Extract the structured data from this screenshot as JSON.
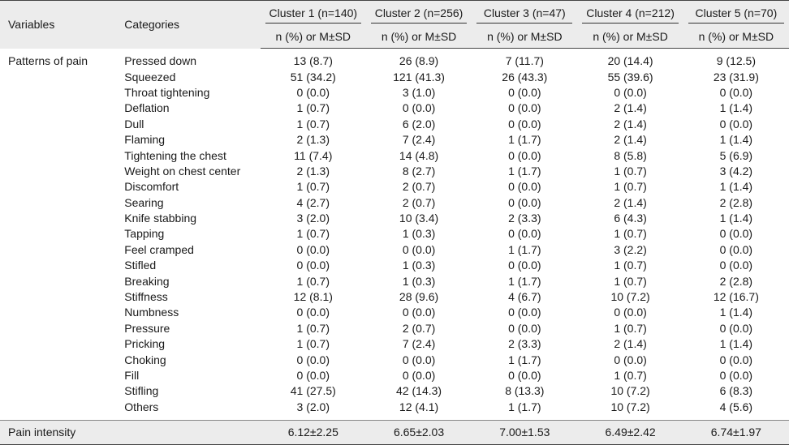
{
  "header": {
    "variables_label": "Variables",
    "categories_label": "Categories",
    "clusters": [
      {
        "label": "Cluster 1 (n=140)",
        "sub": "n (%) or M±SD"
      },
      {
        "label": "Cluster 2 (n=256)",
        "sub": "n (%) or M±SD"
      },
      {
        "label": "Cluster 3 (n=47)",
        "sub": "n (%) or M±SD"
      },
      {
        "label": "Cluster 4 (n=212)",
        "sub": "n (%) or M±SD"
      },
      {
        "label": "Cluster 5 (n=70)",
        "sub": "n (%) or M±SD"
      }
    ]
  },
  "patterns": {
    "variable_label": "Patterns of pain",
    "rows": [
      {
        "category": "Pressed down",
        "values": [
          "13 (8.7)",
          "26 (8.9)",
          "7 (11.7)",
          "20 (14.4)",
          "9 (12.5)"
        ]
      },
      {
        "category": "Squeezed",
        "values": [
          "51 (34.2)",
          "121 (41.3)",
          "26 (43.3)",
          "55 (39.6)",
          "23 (31.9)"
        ]
      },
      {
        "category": "Throat tightening",
        "values": [
          "0 (0.0)",
          "3 (1.0)",
          "0 (0.0)",
          "0 (0.0)",
          "0 (0.0)"
        ]
      },
      {
        "category": "Deflation",
        "values": [
          "1 (0.7)",
          "0 (0.0)",
          "0 (0.0)",
          "2 (1.4)",
          "1 (1.4)"
        ]
      },
      {
        "category": "Dull",
        "values": [
          "1 (0.7)",
          "6 (2.0)",
          "0 (0.0)",
          "2 (1.4)",
          "0 (0.0)"
        ]
      },
      {
        "category": "Flaming",
        "values": [
          "2 (1.3)",
          "7 (2.4)",
          "1 (1.7)",
          "2 (1.4)",
          "1 (1.4)"
        ]
      },
      {
        "category": "Tightening the chest",
        "values": [
          "11 (7.4)",
          "14 (4.8)",
          "0 (0.0)",
          "8 (5.8)",
          "5 (6.9)"
        ]
      },
      {
        "category": "Weight on chest center",
        "values": [
          "2 (1.3)",
          "8 (2.7)",
          "1 (1.7)",
          "1 (0.7)",
          "3 (4.2)"
        ]
      },
      {
        "category": "Discomfort",
        "values": [
          "1 (0.7)",
          "2 (0.7)",
          "0 (0.0)",
          "1 (0.7)",
          "1 (1.4)"
        ]
      },
      {
        "category": "Searing",
        "values": [
          "4 (2.7)",
          "2 (0.7)",
          "0 (0.0)",
          "2 (1.4)",
          "2 (2.8)"
        ]
      },
      {
        "category": "Knife stabbing",
        "values": [
          "3 (2.0)",
          "10 (3.4)",
          "2 (3.3)",
          "6 (4.3)",
          "1 (1.4)"
        ]
      },
      {
        "category": "Tapping",
        "values": [
          "1 (0.7)",
          "1 (0.3)",
          "0 (0.0)",
          "1 (0.7)",
          "0 (0.0)"
        ]
      },
      {
        "category": "Feel cramped",
        "values": [
          "0 (0.0)",
          "0 (0.0)",
          "1 (1.7)",
          "3 (2.2)",
          "0 (0.0)"
        ]
      },
      {
        "category": "Stifled",
        "values": [
          "0 (0.0)",
          "1 (0.3)",
          "0 (0.0)",
          "1 (0.7)",
          "0 (0.0)"
        ]
      },
      {
        "category": "Breaking",
        "values": [
          "1 (0.7)",
          "1 (0.3)",
          "1 (1.7)",
          "1 (0.7)",
          "2 (2.8)"
        ]
      },
      {
        "category": "Stiffness",
        "values": [
          "12 (8.1)",
          "28 (9.6)",
          "4 (6.7)",
          "10 (7.2)",
          "12 (16.7)"
        ]
      },
      {
        "category": "Numbness",
        "values": [
          "0 (0.0)",
          "0 (0.0)",
          "0 (0.0)",
          "0 (0.0)",
          "1 (1.4)"
        ]
      },
      {
        "category": "Pressure",
        "values": [
          "1 (0.7)",
          "2 (0.7)",
          "0 (0.0)",
          "1 (0.7)",
          "0 (0.0)"
        ]
      },
      {
        "category": "Pricking",
        "values": [
          "1 (0.7)",
          "7 (2.4)",
          "2 (3.3)",
          "2 (1.4)",
          "1 (1.4)"
        ]
      },
      {
        "category": "Choking",
        "values": [
          "0 (0.0)",
          "0 (0.0)",
          "1 (1.7)",
          "0 (0.0)",
          "0 (0.0)"
        ]
      },
      {
        "category": "Fill",
        "values": [
          "0 (0.0)",
          "0 (0.0)",
          "0 (0.0)",
          "1 (0.7)",
          "0 (0.0)"
        ]
      },
      {
        "category": "Stifling",
        "values": [
          "41 (27.5)",
          "42 (14.3)",
          "8 (13.3)",
          "10 (7.2)",
          "6 (8.3)"
        ]
      },
      {
        "category": "Others",
        "values": [
          "3 (2.0)",
          "12 (4.1)",
          "1 (1.7)",
          "10 (7.2)",
          "4 (5.6)"
        ]
      }
    ]
  },
  "intensity": {
    "variable_label": "Pain intensity",
    "values": [
      "6.12±2.25",
      "6.65±2.03",
      "7.00±1.53",
      "6.49±2.42",
      "6.74±1.97"
    ]
  }
}
